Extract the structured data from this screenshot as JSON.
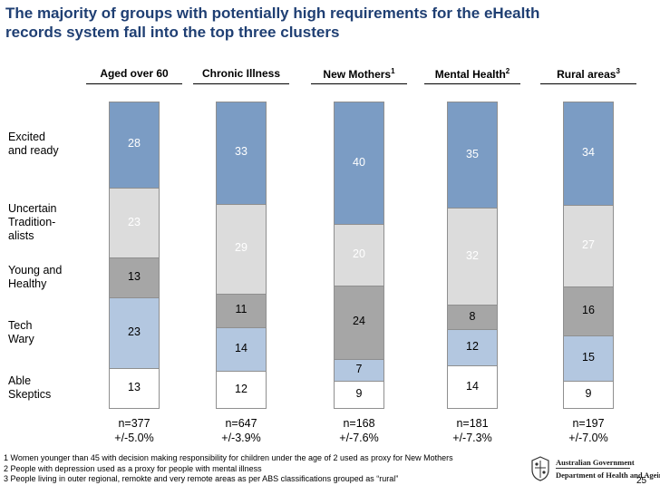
{
  "title": {
    "line1": "The majority of groups with potentially high requirements for the eHealth",
    "line2": "records system fall into the top three clusters"
  },
  "chart_data": {
    "type": "bar",
    "stacked": true,
    "normalized_to_100": true,
    "title": "The majority of groups with potentially high requirements for the eHealth records system fall into the top three clusters",
    "categories": [
      {
        "label": "Aged over 60",
        "sup": ""
      },
      {
        "label": "Chronic Illness",
        "sup": ""
      },
      {
        "label": "New Mothers",
        "sup": "1"
      },
      {
        "label": "Mental Health",
        "sup": "2"
      },
      {
        "label": "Rural areas",
        "sup": "3"
      }
    ],
    "series": [
      {
        "name": "Excited and ready",
        "label_lines": [
          "Excited",
          "and ready"
        ],
        "color": "#7b9cc4",
        "values": [
          28,
          33,
          40,
          35,
          34
        ]
      },
      {
        "name": "Uncertain Traditionalists",
        "label_lines": [
          "Uncertain",
          "Tradition-",
          "alists"
        ],
        "color": "#dcdcdc",
        "values": [
          23,
          29,
          20,
          32,
          27
        ]
      },
      {
        "name": "Young and Healthy",
        "label_lines": [
          "Young and",
          "Healthy"
        ],
        "color": "#a6a6a6",
        "values": [
          13,
          11,
          24,
          8,
          16
        ]
      },
      {
        "name": "Tech Wary",
        "label_lines": [
          "Tech",
          "Wary"
        ],
        "color": "#b3c7e0",
        "values": [
          23,
          14,
          7,
          12,
          15
        ]
      },
      {
        "name": "Able Skeptics",
        "label_lines": [
          "Able",
          "Skeptics"
        ],
        "color": "#ffffff",
        "values": [
          13,
          12,
          9,
          14,
          9
        ]
      }
    ],
    "samples": [
      {
        "n": "n=377",
        "moe": "+/-5.0%"
      },
      {
        "n": "n=647",
        "moe": "+/-3.9%"
      },
      {
        "n": "n=168",
        "moe": "+/-7.6%"
      },
      {
        "n": "n=181",
        "moe": "+/-7.3%"
      },
      {
        "n": "n=197",
        "moe": "+/-7.0%"
      }
    ]
  },
  "footnotes": [
    "1 Women younger than 45 with decision making responsibility for children under the age of 2 used as proxy for New Mothers",
    "2 People with depression used as a proxy for people with mental illness",
    "3 People living in outer regional, remokte and very remote areas as per ABS classifications grouped as “rural”"
  ],
  "logo": {
    "line1": "Australian Government",
    "line2": "Department of Health and Ageing"
  },
  "page_number": "25"
}
